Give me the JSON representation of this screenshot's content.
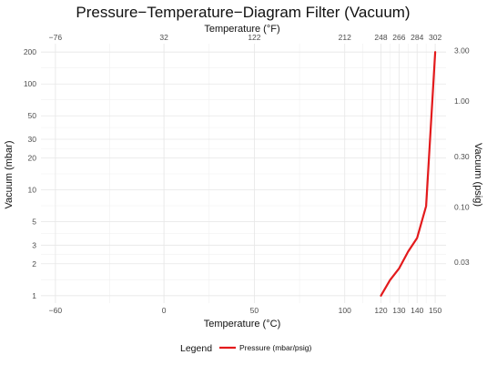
{
  "chart_data": {
    "type": "line",
    "title": "Pressure−Temperature−Diagram Filter (Vacuum)",
    "xlabel": "Temperature (°C)",
    "x2label": "Temperature (°F)",
    "ylabel": "Vacuum (mbar)",
    "y2label": "Vacuum (psig)",
    "xlim": [
      -68,
      156
    ],
    "ylim": [
      0.85,
      240
    ],
    "yscale": "log",
    "grid": true,
    "x_ticks": [
      {
        "v": -60,
        "label": "−60"
      },
      {
        "v": 0,
        "label": "0"
      },
      {
        "v": 50,
        "label": "50"
      },
      {
        "v": 100,
        "label": "100"
      },
      {
        "v": 120,
        "label": "120"
      },
      {
        "v": 130,
        "label": "130"
      },
      {
        "v": 140,
        "label": "140"
      },
      {
        "v": 150,
        "label": "150"
      }
    ],
    "x2_ticks": [
      {
        "v": -60,
        "label": "−76"
      },
      {
        "v": 0,
        "label": "32"
      },
      {
        "v": 50,
        "label": "122"
      },
      {
        "v": 100,
        "label": "212"
      },
      {
        "v": 120,
        "label": "248"
      },
      {
        "v": 130,
        "label": "266"
      },
      {
        "v": 140,
        "label": "284"
      },
      {
        "v": 150,
        "label": "302"
      }
    ],
    "y_ticks": [
      {
        "v": 1,
        "label": "1"
      },
      {
        "v": 2,
        "label": "2"
      },
      {
        "v": 3,
        "label": "3"
      },
      {
        "v": 5,
        "label": "5"
      },
      {
        "v": 10,
        "label": "10"
      },
      {
        "v": 20,
        "label": "20"
      },
      {
        "v": 30,
        "label": "30"
      },
      {
        "v": 50,
        "label": "50"
      },
      {
        "v": 100,
        "label": "100"
      },
      {
        "v": 200,
        "label": "200"
      }
    ],
    "y2_ticks": [
      {
        "v": 2.07,
        "label": "0.03"
      },
      {
        "v": 6.89,
        "label": "0.10"
      },
      {
        "v": 20.7,
        "label": "0.30"
      },
      {
        "v": 68.9,
        "label": "1.00"
      },
      {
        "v": 206.8,
        "label": "3.00"
      }
    ],
    "series": [
      {
        "name": "Pressure (mbar/psig)",
        "color": "#e31a1c",
        "x": [
          120,
          125,
          130,
          135,
          140,
          145,
          150
        ],
        "y": [
          1.0,
          1.4,
          1.8,
          2.6,
          3.5,
          7.0,
          200
        ]
      }
    ],
    "legend": {
      "title": "Legend",
      "position": "bottom"
    }
  }
}
